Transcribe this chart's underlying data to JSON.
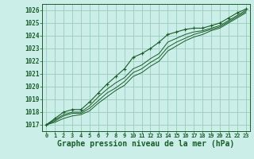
{
  "bg_color": "#cceee8",
  "grid_color": "#99ccbb",
  "line_color": "#1a5c2a",
  "title": "Graphe pression niveau de la mer (hPa)",
  "title_fontsize": 7.0,
  "xlim": [
    -0.5,
    23.5
  ],
  "ylim": [
    1016.5,
    1026.5
  ],
  "yticks": [
    1017,
    1018,
    1019,
    1020,
    1021,
    1022,
    1023,
    1024,
    1025,
    1026
  ],
  "xticks": [
    0,
    1,
    2,
    3,
    4,
    5,
    6,
    7,
    8,
    9,
    10,
    11,
    12,
    13,
    14,
    15,
    16,
    17,
    18,
    19,
    20,
    21,
    22,
    23
  ],
  "series": [
    [
      1017.0,
      1017.5,
      1018.0,
      1018.2,
      1018.2,
      1018.8,
      1019.5,
      1020.2,
      1020.8,
      1021.4,
      1022.3,
      1022.6,
      1023.0,
      1023.5,
      1024.1,
      1024.3,
      1024.5,
      1024.6,
      1024.6,
      1024.8,
      1025.0,
      1025.4,
      1025.8,
      1026.1
    ],
    [
      1017.0,
      1017.4,
      1017.8,
      1018.0,
      1018.0,
      1018.5,
      1019.2,
      1019.8,
      1020.3,
      1020.7,
      1021.4,
      1021.7,
      1022.2,
      1022.6,
      1023.5,
      1023.8,
      1024.1,
      1024.3,
      1024.4,
      1024.6,
      1024.8,
      1025.2,
      1025.6,
      1026.0
    ],
    [
      1017.0,
      1017.3,
      1017.7,
      1017.9,
      1017.9,
      1018.3,
      1018.9,
      1019.5,
      1019.9,
      1020.4,
      1021.1,
      1021.4,
      1021.9,
      1022.3,
      1023.1,
      1023.5,
      1023.8,
      1024.1,
      1024.3,
      1024.5,
      1024.7,
      1025.1,
      1025.5,
      1025.9
    ],
    [
      1017.0,
      1017.2,
      1017.5,
      1017.7,
      1017.8,
      1018.1,
      1018.7,
      1019.2,
      1019.7,
      1020.1,
      1020.8,
      1021.1,
      1021.6,
      1022.0,
      1022.8,
      1023.2,
      1023.6,
      1023.9,
      1024.1,
      1024.4,
      1024.6,
      1025.0,
      1025.4,
      1025.8
    ]
  ],
  "marker_series": 0
}
